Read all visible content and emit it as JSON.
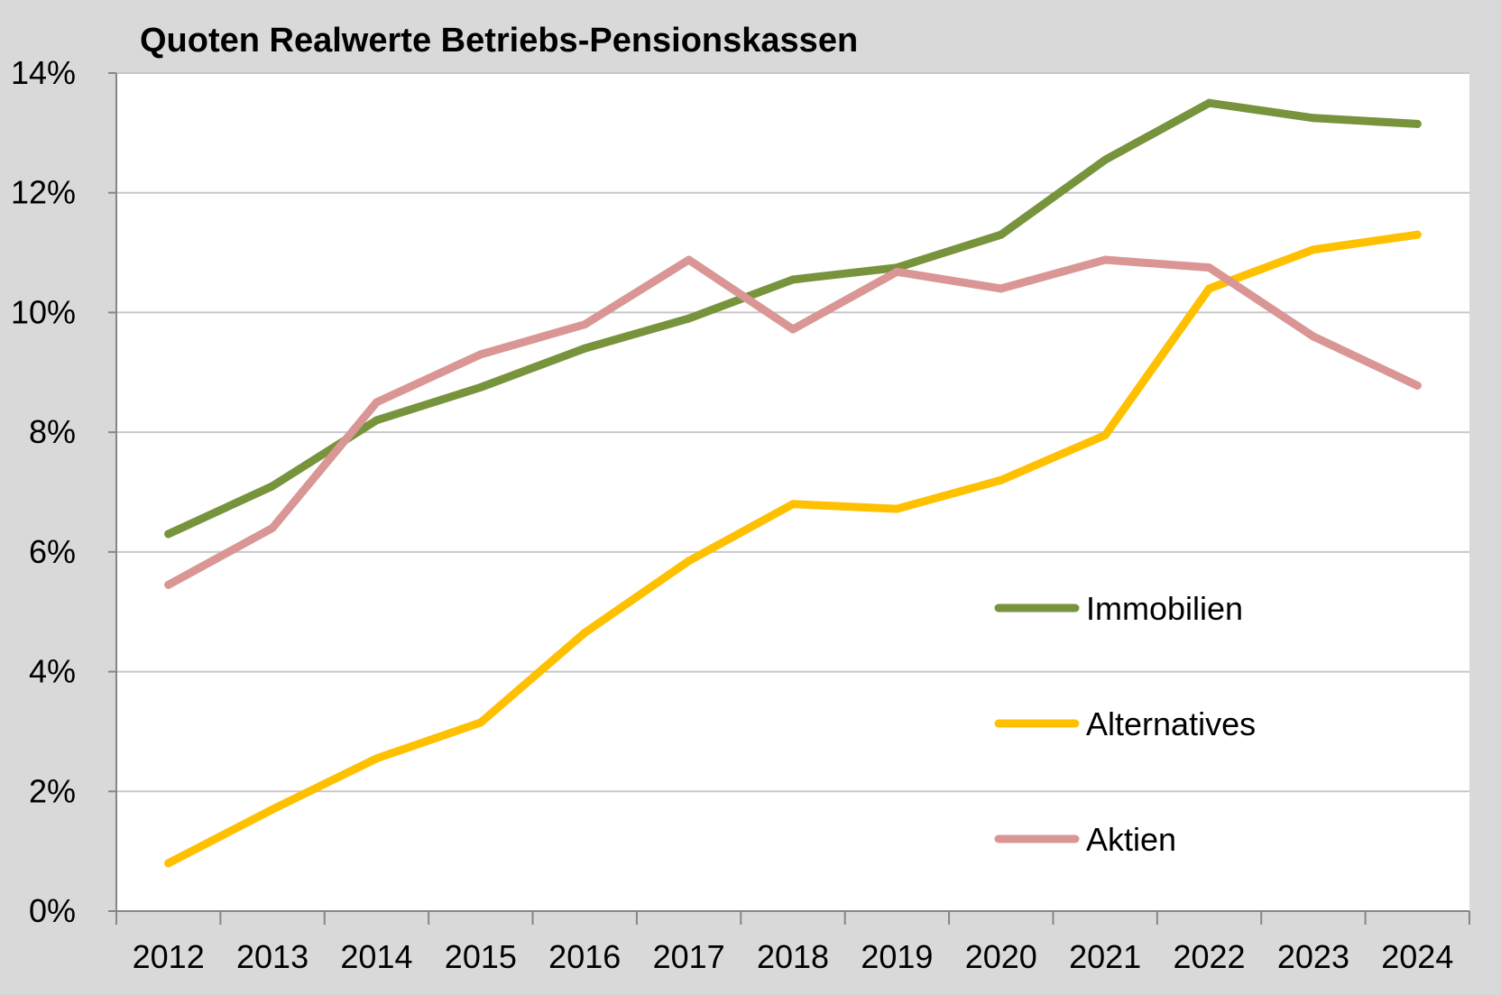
{
  "chart_data": {
    "type": "line",
    "title": "Quoten Realwerte Betriebs-Pensionskassen",
    "xlabel": "",
    "ylabel": "",
    "categories": [
      "2012",
      "2013",
      "2014",
      "2015",
      "2016",
      "2017",
      "2018",
      "2019",
      "2020",
      "2021",
      "2022",
      "2023",
      "2024"
    ],
    "ylim": [
      0,
      14
    ],
    "yticks": [
      0,
      2,
      4,
      6,
      8,
      10,
      12,
      14
    ],
    "ytick_labels": [
      "0%",
      "2%",
      "4%",
      "6%",
      "8%",
      "10%",
      "12%",
      "14%"
    ],
    "grid": true,
    "legend_position": "right",
    "series": [
      {
        "name": "Immobilien",
        "color": "#77933c",
        "values": [
          6.3,
          7.1,
          8.2,
          8.75,
          9.4,
          9.9,
          10.55,
          10.75,
          11.3,
          12.55,
          13.5,
          13.25,
          13.15
        ]
      },
      {
        "name": "Alternatives",
        "color": "#ffc000",
        "values": [
          0.8,
          1.7,
          2.55,
          3.15,
          4.65,
          5.85,
          6.8,
          6.72,
          7.2,
          7.95,
          10.4,
          11.05,
          11.3
        ]
      },
      {
        "name": "Aktien",
        "color": "#d99694",
        "values": [
          5.45,
          6.4,
          8.5,
          9.3,
          9.8,
          10.88,
          9.72,
          10.68,
          10.4,
          10.88,
          10.75,
          9.6,
          8.78
        ]
      }
    ]
  }
}
